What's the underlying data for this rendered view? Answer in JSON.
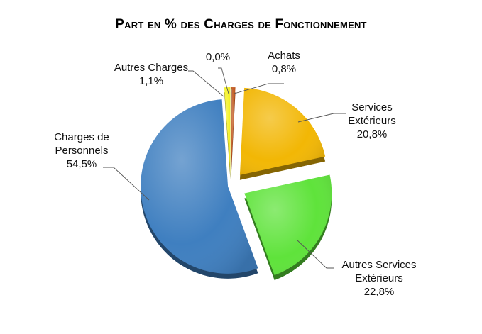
{
  "chart_data": {
    "type": "pie",
    "title": "Part en % des Charges de Fonctionnement",
    "slices": [
      {
        "name": "Achats",
        "value": 0.8,
        "label": "0,8%",
        "color": "#c0561d"
      },
      {
        "name": "Services Extérieurs",
        "value": 20.8,
        "label": "20,8%",
        "color": "#f2b705"
      },
      {
        "name": "Autres Services Extérieurs",
        "value": 22.8,
        "label": "22,8%",
        "color": "#5fe33b"
      },
      {
        "name": "Charges de Personnels",
        "value": 54.5,
        "label": "54,5%",
        "color": "#3f7fc0"
      },
      {
        "name": "Autres Charges",
        "value": 1.1,
        "label": "1,1%",
        "color": "#f5f226"
      },
      {
        "name": "",
        "value": 0.0,
        "label": "0,0%",
        "color": "#9e9e9e"
      }
    ],
    "label_lines": {
      "achats": [
        "Achats",
        "0,8%"
      ],
      "services": [
        "Services",
        "Extérieurs",
        "20,8%"
      ],
      "autres_services": [
        "Autres Services",
        "Extérieurs",
        "22,8%"
      ],
      "personnels": [
        "Charges de",
        "Personnels",
        "54,5%"
      ],
      "autres_charges": [
        "Autres Charges",
        "1,1%"
      ],
      "zero": [
        "0,0%"
      ]
    },
    "legend": "none",
    "start_angle": "12 o'clock, clockwise",
    "exploded": true
  }
}
